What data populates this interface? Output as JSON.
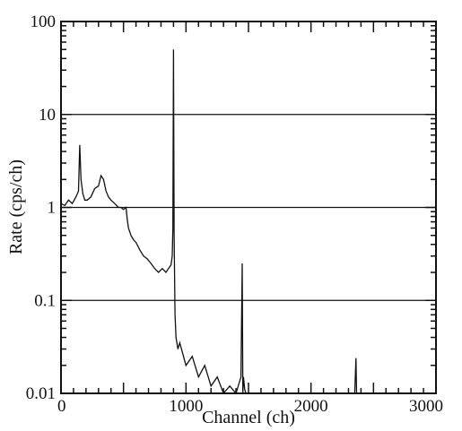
{
  "chart_data": {
    "type": "line",
    "title": "",
    "xlabel": "Channel (ch)",
    "ylabel": "Rate (cps/ch)",
    "xlim": [
      0,
      3000
    ],
    "ylim": [
      0.01,
      100
    ],
    "y_scale": "log",
    "grid": "horizontal major lines",
    "x_ticks": [
      {
        "value": 0,
        "label": "0"
      },
      {
        "value": 1000,
        "label": "1000"
      },
      {
        "value": 2000,
        "label": "2000"
      },
      {
        "value": 3000,
        "label": "3000"
      }
    ],
    "y_ticks": [
      {
        "value": 0.01,
        "label": "0.01"
      },
      {
        "value": 0.1,
        "label": "0.1"
      },
      {
        "value": 1,
        "label": "1"
      },
      {
        "value": 10,
        "label": "10"
      },
      {
        "value": 100,
        "label": "100"
      }
    ],
    "series": [
      {
        "x": [
          0,
          30,
          60,
          90,
          120,
          140,
          150,
          160,
          175,
          190,
          210,
          240,
          270,
          300,
          320,
          340,
          360,
          380,
          400,
          430,
          460,
          480,
          500,
          520,
          530,
          540,
          560,
          580,
          600,
          630,
          660,
          690,
          720,
          750,
          780,
          810,
          840,
          860,
          880,
          890,
          895,
          900,
          905,
          912,
          920,
          935,
          950,
          1000,
          1050,
          1100,
          1150,
          1200,
          1250,
          1300,
          1350,
          1400,
          1440,
          1450,
          1455,
          1460,
          1470,
          1480,
          1500,
          1600,
          1800,
          2000,
          2200,
          2350,
          2360,
          2365,
          2370,
          2400,
          2600,
          2800,
          3000
        ],
        "y": [
          1.1,
          1.05,
          1.2,
          1.1,
          1.3,
          1.5,
          4.7,
          2.0,
          1.4,
          1.2,
          1.2,
          1.3,
          1.6,
          1.7,
          2.2,
          2.0,
          1.5,
          1.3,
          1.2,
          1.1,
          1.0,
          1.0,
          0.95,
          1.0,
          0.75,
          0.6,
          0.5,
          0.45,
          0.42,
          0.35,
          0.3,
          0.28,
          0.25,
          0.22,
          0.2,
          0.22,
          0.2,
          0.22,
          0.24,
          0.3,
          0.6,
          50,
          0.5,
          0.07,
          0.04,
          0.03,
          0.035,
          0.02,
          0.025,
          0.015,
          0.02,
          0.012,
          0.015,
          0.01,
          0.012,
          0.01,
          0.015,
          0.25,
          0.01,
          0.015,
          0.011,
          0.01,
          0.01,
          0.01,
          0.01,
          0.01,
          0.01,
          0.01,
          0.024,
          0.01,
          0.01,
          0.01,
          0.01,
          0.01,
          0.01
        ]
      }
    ]
  }
}
